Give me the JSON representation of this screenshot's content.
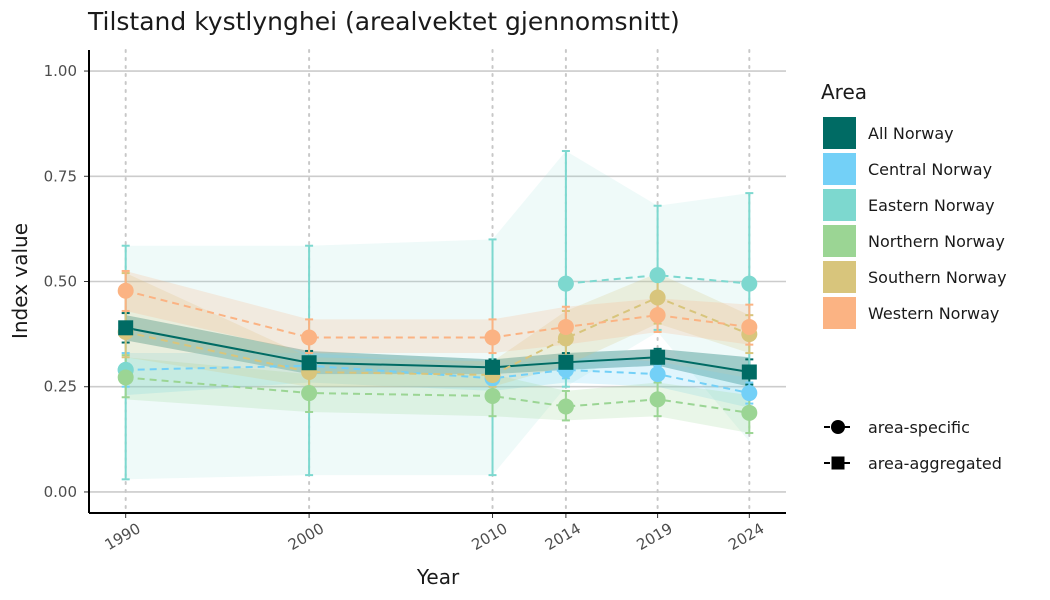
{
  "chart_data": {
    "type": "line",
    "title": "Tilstand kystlynghei (arealvektet gjennomsnitt)",
    "xlabel": "Year",
    "ylabel": "Index value",
    "x": [
      1990,
      2000,
      2010,
      2014,
      2019,
      2024
    ],
    "x_tick_labels": [
      "1990",
      "2000",
      "2010",
      "2014",
      "2019",
      "2024"
    ],
    "ylim": [
      -0.05,
      1.05
    ],
    "y_ticks": [
      0,
      0.25,
      0.5,
      0.75,
      1
    ],
    "y_tick_labels": [
      "0.00",
      "0.25",
      "0.50",
      "0.75",
      "1.00"
    ],
    "grid": "horizontal major; dotted vertical at data years",
    "legend": {
      "title": "Area",
      "position": "right",
      "shape_legend": [
        {
          "label": "area-specific",
          "shape": "circle"
        },
        {
          "label": "area-aggregated",
          "shape": "square"
        }
      ]
    },
    "series": [
      {
        "name": "All Norway",
        "color": "#006b64",
        "shape": "square",
        "line": "solid",
        "values": [
          0.39,
          0.307,
          0.296,
          0.308,
          0.32,
          0.285
        ],
        "lower": [
          0.355,
          0.28,
          0.28,
          0.285,
          0.3,
          0.255
        ],
        "upper": [
          0.425,
          0.335,
          0.315,
          0.33,
          0.34,
          0.315
        ],
        "band_lower": [
          0.36,
          0.28,
          0.28,
          0.29,
          0.3,
          0.25
        ],
        "band_upper": [
          0.42,
          0.335,
          0.315,
          0.33,
          0.34,
          0.32
        ]
      },
      {
        "name": "Central Norway",
        "color": "#73d0f7",
        "shape": "circle",
        "line": "dashed",
        "values": [
          0.29,
          0.3,
          0.27,
          0.29,
          0.28,
          0.235
        ],
        "lower": [
          0.25,
          0.28,
          0.25,
          0.27,
          0.26,
          0.21
        ],
        "upper": [
          0.33,
          0.32,
          0.29,
          0.31,
          0.3,
          0.26
        ],
        "band_lower": [
          0.23,
          0.26,
          0.24,
          0.26,
          0.25,
          0.2
        ],
        "band_upper": [
          0.33,
          0.33,
          0.3,
          0.32,
          0.31,
          0.27
        ]
      },
      {
        "name": "Eastern Norway",
        "color": "#7dd8cf",
        "shape": "circle",
        "line": "dashed",
        "values": [
          0.29,
          null,
          null,
          0.495,
          0.515,
          0.495
        ],
        "lower": [
          0.03,
          0.04,
          0.04,
          0.25,
          0.385,
          0.27
        ],
        "upper": [
          0.585,
          0.585,
          0.6,
          0.81,
          0.68,
          0.71
        ],
        "band_lower": [
          0.03,
          0.04,
          0.04,
          0.25,
          0.38,
          0.12
        ],
        "band_upper": [
          0.585,
          0.585,
          0.6,
          0.81,
          0.68,
          0.71
        ]
      },
      {
        "name": "Northern Norway",
        "color": "#9bd594",
        "shape": "circle",
        "line": "dashed",
        "values": [
          0.272,
          0.235,
          0.228,
          0.203,
          0.22,
          0.188
        ],
        "lower": [
          0.225,
          0.19,
          0.18,
          0.17,
          0.18,
          0.14
        ],
        "upper": [
          0.325,
          0.28,
          0.28,
          0.24,
          0.26,
          0.23
        ],
        "band_lower": [
          0.22,
          0.19,
          0.18,
          0.17,
          0.18,
          0.14
        ],
        "band_upper": [
          0.32,
          0.28,
          0.28,
          0.24,
          0.26,
          0.23
        ]
      },
      {
        "name": "Southern Norway",
        "color": "#d8c57c",
        "shape": "circle",
        "line": "dashed",
        "values": [
          0.38,
          0.285,
          0.278,
          0.365,
          0.462,
          0.375
        ],
        "lower": [
          0.32,
          0.25,
          0.25,
          0.3,
          0.4,
          0.33
        ],
        "upper": [
          0.52,
          0.32,
          0.31,
          0.43,
          0.52,
          0.42
        ],
        "band_lower": [
          0.32,
          0.25,
          0.25,
          0.3,
          0.4,
          0.33
        ],
        "band_upper": [
          0.52,
          0.32,
          0.31,
          0.43,
          0.52,
          0.42
        ]
      },
      {
        "name": "Western Norway",
        "color": "#fbb383",
        "shape": "circle",
        "line": "dashed",
        "values": [
          0.478,
          0.367,
          0.367,
          0.392,
          0.42,
          0.392
        ],
        "lower": [
          0.43,
          0.33,
          0.33,
          0.35,
          0.38,
          0.35
        ],
        "upper": [
          0.525,
          0.41,
          0.41,
          0.44,
          0.46,
          0.445
        ],
        "band_lower": [
          0.43,
          0.33,
          0.33,
          0.35,
          0.38,
          0.35
        ],
        "band_upper": [
          0.525,
          0.41,
          0.41,
          0.44,
          0.46,
          0.445
        ]
      }
    ]
  }
}
